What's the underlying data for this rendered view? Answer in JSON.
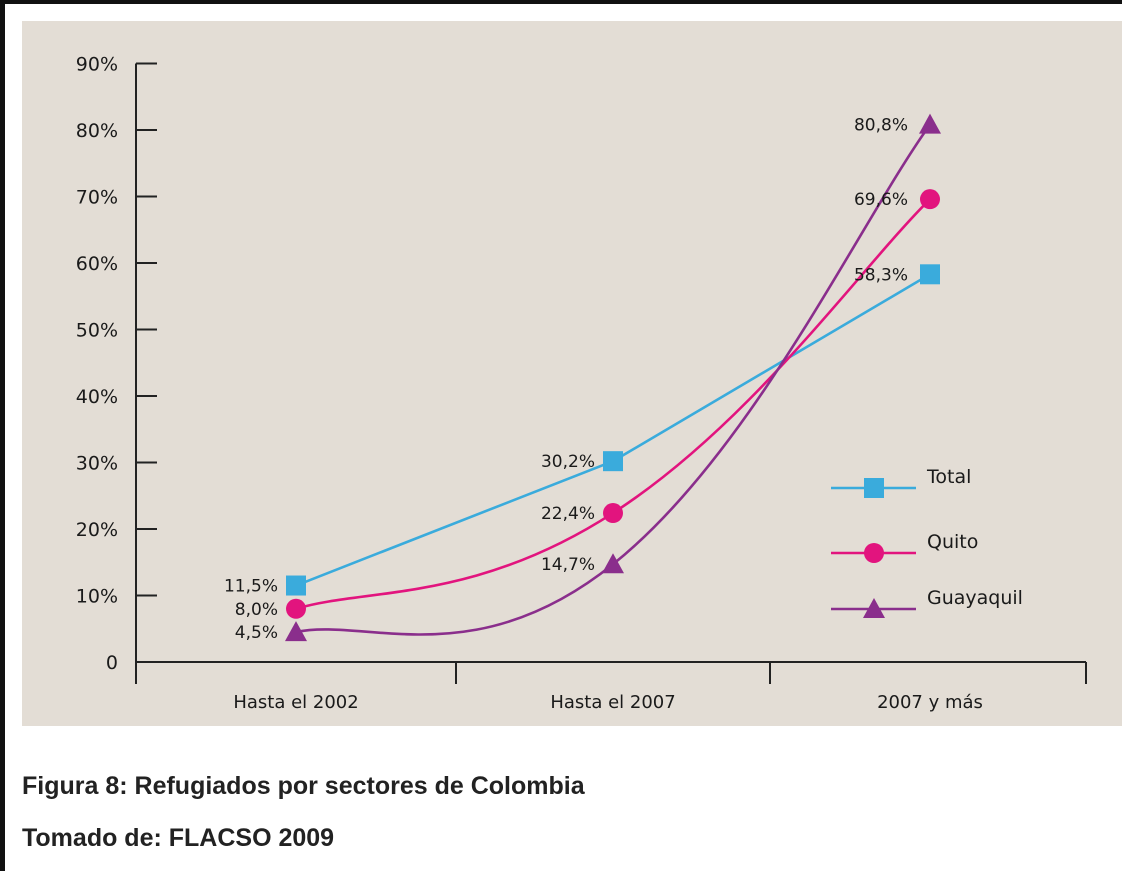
{
  "caption": {
    "figure": "Figura 8: Refugiados por sectores de Colombia",
    "source": "Tomado de: FLACSO 2009"
  },
  "colors": {
    "background": "#e3ddd5",
    "axis": "#222222",
    "total": "#3aabdc",
    "quito": "#e2147e",
    "guayaquil": "#8a2e8c"
  },
  "chart_data": {
    "type": "line",
    "title": "",
    "xlabel": "",
    "ylabel": "",
    "ylim": [
      0,
      90
    ],
    "yticks": [
      {
        "value": 0,
        "label": "0"
      },
      {
        "value": 10,
        "label": "10%"
      },
      {
        "value": 20,
        "label": "20%"
      },
      {
        "value": 30,
        "label": "30%"
      },
      {
        "value": 40,
        "label": "40%"
      },
      {
        "value": 50,
        "label": "50%"
      },
      {
        "value": 60,
        "label": "60%"
      },
      {
        "value": 70,
        "label": "70%"
      },
      {
        "value": 80,
        "label": "80%"
      },
      {
        "value": 90,
        "label": "90%"
      }
    ],
    "categories": [
      "Hasta el 2002",
      "Hasta el 2007",
      "2007 y más"
    ],
    "grid": false,
    "legend_position": "right",
    "series": [
      {
        "name": "Total",
        "marker": "square",
        "values": [
          11.5,
          30.2,
          58.3
        ],
        "labels": [
          "11,5%",
          "30,2%",
          "58,3%"
        ]
      },
      {
        "name": "Quito",
        "marker": "circle",
        "values": [
          8.0,
          22.4,
          69.6
        ],
        "labels": [
          "8,0%",
          "22,4%",
          "69,6%"
        ]
      },
      {
        "name": "Guayaquil",
        "marker": "triangle",
        "values": [
          4.5,
          14.7,
          80.8
        ],
        "labels": [
          "4,5%",
          "14,7%",
          "80,8%"
        ]
      }
    ]
  }
}
